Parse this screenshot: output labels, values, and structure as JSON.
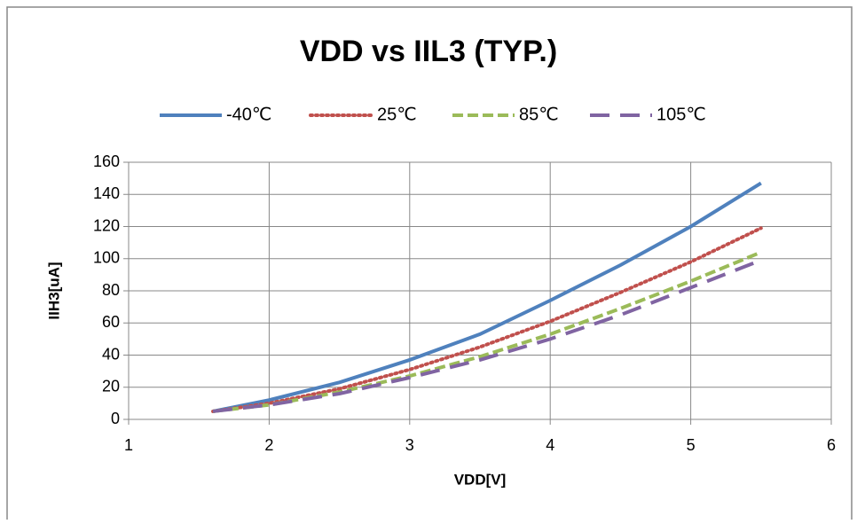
{
  "chart_data": {
    "type": "line",
    "title": "VDD vs IIL3 (TYP.)",
    "x_label": "VDD[V]",
    "y_label": "IIH3[uA]",
    "x": [
      1.6,
      2,
      2.5,
      3,
      3.5,
      4,
      4.5,
      5,
      5.5
    ],
    "series": [
      {
        "name": "-40℃",
        "color": "#4f81bd",
        "dash": "solid",
        "values": [
          5,
          12,
          23,
          37,
          53,
          74,
          96,
          120,
          147
        ]
      },
      {
        "name": "25℃",
        "color": "#c0504d",
        "dash": "dotted",
        "values": [
          5,
          10,
          19,
          31,
          45,
          61,
          79,
          98,
          119
        ]
      },
      {
        "name": "85℃",
        "color": "#9bbb59",
        "dash": "dashed",
        "values": [
          5,
          9,
          17,
          27,
          39,
          53,
          69,
          86,
          104
        ]
      },
      {
        "name": "105℃",
        "color": "#8064a2",
        "dash": "longdash",
        "values": [
          5,
          9,
          16,
          26,
          37,
          50,
          65,
          82,
          99
        ]
      }
    ],
    "xlim": [
      1,
      6
    ],
    "xticks": [
      1,
      2,
      3,
      4,
      5,
      6
    ],
    "ylim": [
      0,
      160
    ],
    "yticks": [
      0,
      20,
      40,
      60,
      80,
      100,
      120,
      140,
      160
    ],
    "grid": true,
    "legend": "top"
  }
}
